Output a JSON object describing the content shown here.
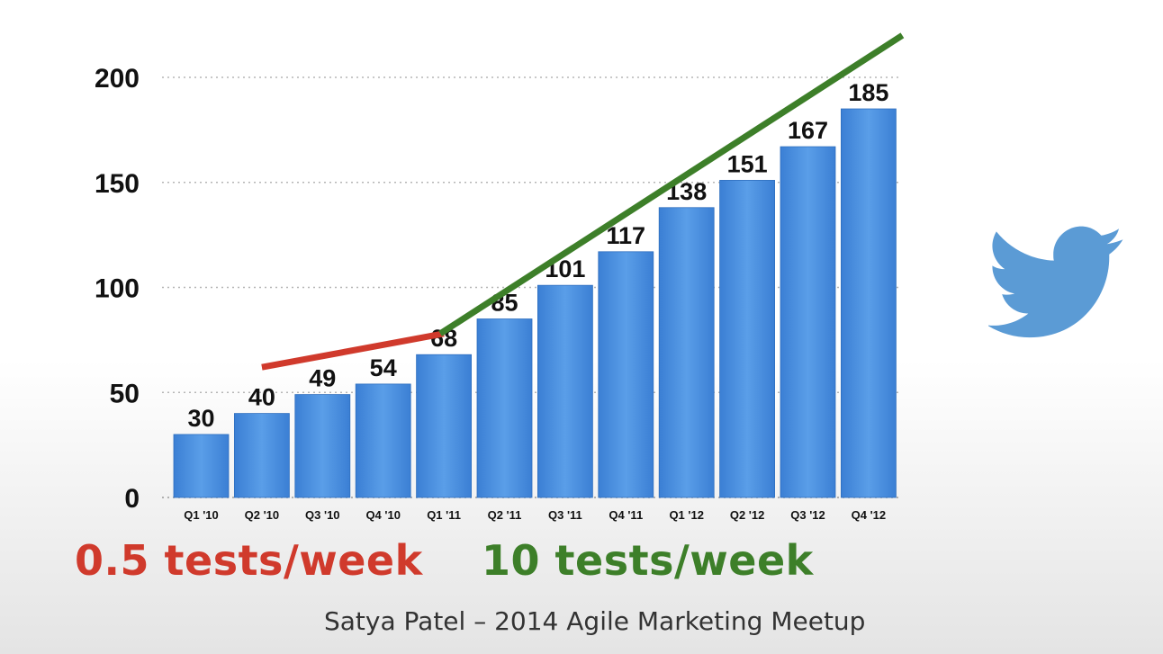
{
  "chart_data": {
    "type": "bar",
    "categories": [
      "Q1 '10",
      "Q2 '10",
      "Q3 '10",
      "Q4 '10",
      "Q1 '11",
      "Q2 '11",
      "Q3 '11",
      "Q4 '11",
      "Q1 '12",
      "Q2 '12",
      "Q3 '12",
      "Q4 '12"
    ],
    "values": [
      30,
      40,
      49,
      54,
      68,
      85,
      101,
      117,
      138,
      151,
      167,
      185
    ],
    "ylim": [
      0,
      200
    ],
    "yticks": [
      "0",
      "50",
      "100",
      "150",
      "200"
    ],
    "grid": true,
    "bar_color": "#4a8fe0",
    "trend_lines": [
      {
        "label": "0.5 tests/week",
        "color": "#d03a2c",
        "from": {
          "x": "Q2 '10",
          "y": 62
        },
        "to": {
          "x": "Q1 '11",
          "y": 78
        }
      },
      {
        "label": "10 tests/week",
        "color": "#3d7f29",
        "from": {
          "x": "Q1 '11",
          "y": 78
        },
        "to": {
          "x": "Q4 '12",
          "y": 220
        }
      }
    ]
  },
  "captions": {
    "left": {
      "text": "0.5 tests/week",
      "color": "#d03a2c"
    },
    "right": {
      "text": "10 tests/week",
      "color": "#3d7f29"
    }
  },
  "credit": "Satya Patel – 2014 Agile Marketing Meetup",
  "logo": {
    "icon": "twitter-bird-icon",
    "color": "#5b9bd5"
  }
}
